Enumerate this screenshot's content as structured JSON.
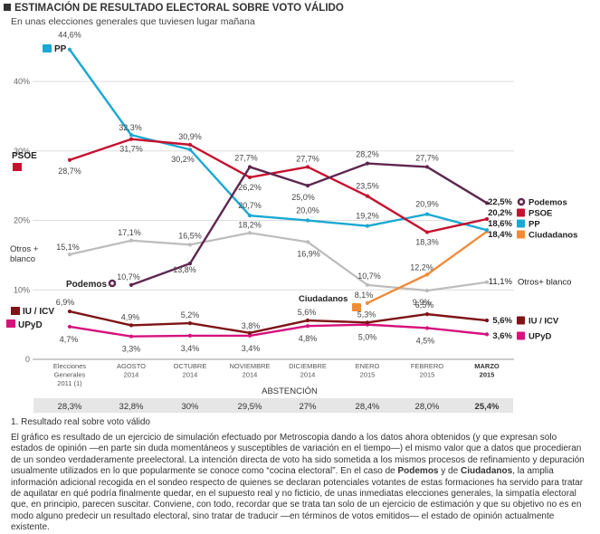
{
  "header": {
    "title": "ESTIMACIÓN DE RESULTADO ELECTORAL SOBRE VOTO VÁLIDO",
    "subtitle": "En unas elecciones generales que tuviesen lugar mañana"
  },
  "colors": {
    "PP": "#1aa8d4",
    "PSOE": "#c4122f",
    "Podemos": "#5e2750",
    "Ciudadanos": "#ee8c3a",
    "IU": "#7e1416",
    "UPyD": "#d6127c",
    "Otros": "#bcbcbc",
    "grid": "#dddddd"
  },
  "chart_data": {
    "type": "line",
    "title": "ESTIMACIÓN DE RESULTADO ELECTORAL SOBRE VOTO VÁLIDO",
    "subtitle": "En unas elecciones generales que tuviesen lugar mañana",
    "categories": [
      [
        "Elecciones",
        "Generales",
        "2011 (1)"
      ],
      [
        "AGOSTO",
        "2014"
      ],
      [
        "OCTUBRE",
        "2014"
      ],
      [
        "NOVIEMBRE",
        "2014"
      ],
      [
        "DICIEMBRE",
        "2014"
      ],
      [
        "ENERO",
        "2015"
      ],
      [
        "FEBRERO",
        "2015"
      ],
      [
        "MARZO",
        "2015"
      ]
    ],
    "yticks": [
      "0",
      "10%",
      "20%",
      "30%",
      "40%"
    ],
    "ylim": [
      0,
      46
    ],
    "series": [
      {
        "key": "PP",
        "name": "PP",
        "values": [
          44.6,
          32.3,
          30.2,
          20.7,
          20.0,
          19.2,
          20.9,
          18.6
        ],
        "labels": [
          "44,6%",
          "32,3%",
          "30,2%",
          "20,7%",
          "20,0%",
          "19,2%",
          "20,9%",
          "18,6%"
        ]
      },
      {
        "key": "PSOE",
        "name": "PSOE",
        "values": [
          28.7,
          31.7,
          30.9,
          26.2,
          27.7,
          23.5,
          18.3,
          20.2
        ],
        "labels": [
          "28,7%",
          "31,7%",
          "30,9%",
          "26,2%",
          "27,7%",
          "23,5%",
          "18,3%",
          "20,2%"
        ]
      },
      {
        "key": "Podemos",
        "name": "Podemos",
        "values": [
          null,
          10.7,
          13.8,
          27.7,
          25.0,
          28.2,
          27.7,
          22.5
        ],
        "labels": [
          null,
          "10,7%",
          "13,8%",
          "27,7%",
          "25,0%",
          "28,2%",
          "27,7%",
          "22,5%"
        ]
      },
      {
        "key": "Otros",
        "name": "Otros+ blanco",
        "values": [
          15.1,
          17.1,
          16.5,
          18.2,
          16.9,
          10.7,
          9.9,
          11.1
        ],
        "labels": [
          "15,1%",
          "17,1%",
          "16,5%",
          "18,2%",
          "16,9%",
          "10,7%",
          "9,9%",
          "11,1%"
        ]
      },
      {
        "key": "Ciudadanos",
        "name": "Ciudadanos",
        "values": [
          null,
          null,
          null,
          null,
          null,
          8.1,
          12.2,
          18.4
        ],
        "labels": [
          null,
          null,
          null,
          null,
          null,
          "8,1%",
          "12,2%",
          "18,4%"
        ]
      },
      {
        "key": "IU",
        "name": "IU / ICV",
        "values": [
          6.9,
          4.9,
          5.2,
          3.8,
          5.6,
          5.3,
          6.5,
          5.6
        ],
        "labels": [
          "6,9%",
          "4,9%",
          "5,2%",
          "3,8%",
          "5,6%",
          "5,3%",
          "6,5%",
          "5,6%"
        ]
      },
      {
        "key": "UPyD",
        "name": "UPyD",
        "values": [
          4.7,
          3.3,
          3.4,
          3.4,
          4.8,
          5.0,
          4.5,
          3.6
        ],
        "labels": [
          "4,7%",
          "3,3%",
          "3,4%",
          "3,4%",
          "4,8%",
          "5,0%",
          "4,5%",
          "3,6%"
        ]
      }
    ],
    "left_labels": {
      "PP": "PP",
      "PSOE": "PSOE",
      "Otros": [
        "Otros +",
        "blanco"
      ],
      "Podemos": "Podemos",
      "Ciudadanos": "Ciudadanos",
      "IU": "IU / ICV",
      "UPyD": "UPyD"
    },
    "abstention_title": "ABSTENCIÓN",
    "abstention": [
      "28,3%",
      "32,8%",
      "30%",
      "29,5%",
      "27%",
      "28,4%",
      "28,0%",
      "25,4%"
    ]
  },
  "footnote": "1. Resultado real sobre voto válido",
  "note": {
    "p1": "El gráfico es resultado de un ejercicio de simulación efectuado por Metroscopia dando a los datos ahora obtenidos (y que expresan solo estados de opinión —en parte sin duda momentáneos y susceptibles de variación en el tiempo—) el mismo valor que a datos que procedieran de un sondeo verdaderamente preelectoral. La intención directa de voto ha sido sometida a los mismos procesos de refinamiento y depuración usualmente utilizados en lo que popularmente se conoce como “cocina electoral”. En el caso de ",
    "b1": "Podemos",
    "p2": " y de ",
    "b2": "Ciudadanos",
    "p3": ", la amplia información adicional recogida en el sondeo respecto de quienes se declaran potenciales votantes de estas formaciones ha servido para tratar de aquilatar en qué podría finalmente quedar, en el supuesto real y no ficticio, de unas inmediatas elecciones generales, la simpatía electoral que, en principio, parecen suscitar. Conviene, con todo, recordar que se trata tan solo de un ejercicio de estimación y que su objetivo no es en modo alguno predecir un resultado electoral, sino tratar de traducir —en términos de votos emitidos— el estado de opinión actualmente existente."
  }
}
